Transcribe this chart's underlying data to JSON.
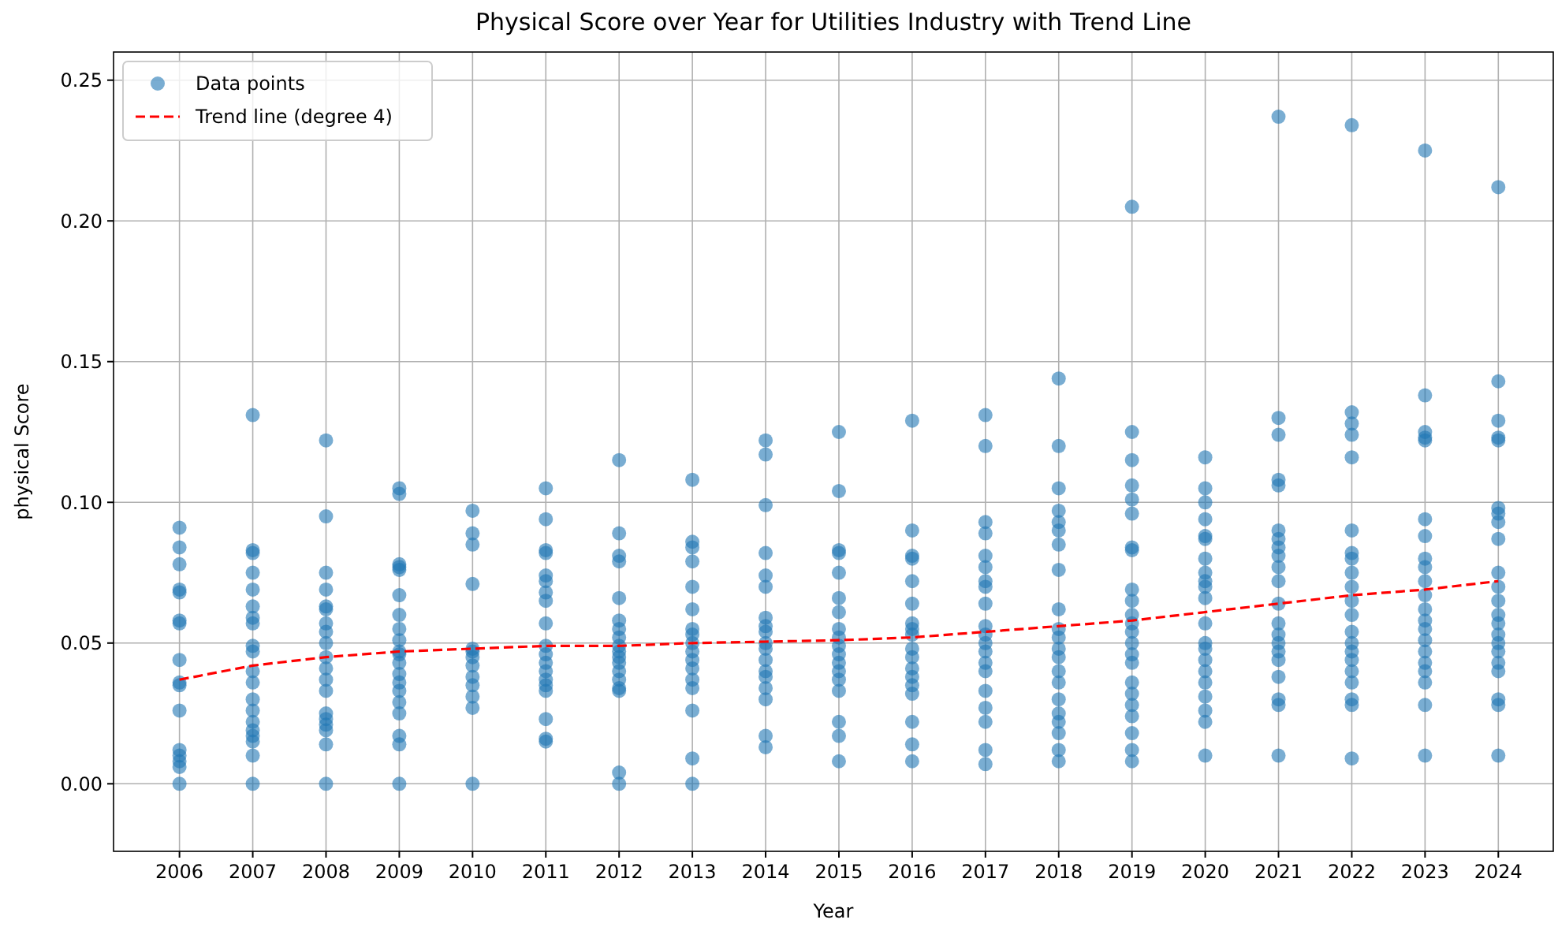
{
  "chart_data": {
    "type": "scatter",
    "title": "Physical Score over Year for Utilities Industry with Trend Line",
    "xlabel": "Year",
    "ylabel": "physical Score",
    "xlim": [
      2005.1,
      2024.75
    ],
    "ylim": [
      -0.024,
      0.26
    ],
    "xticks": [
      2006,
      2007,
      2008,
      2009,
      2010,
      2011,
      2012,
      2013,
      2014,
      2015,
      2016,
      2017,
      2018,
      2019,
      2020,
      2021,
      2022,
      2023,
      2024
    ],
    "yticks": [
      {
        "value": 0,
        "label": "0.00"
      },
      {
        "value": 0.05,
        "label": "0.05"
      },
      {
        "value": 0.1,
        "label": "0.10"
      },
      {
        "value": 0.15,
        "label": "0.15"
      },
      {
        "value": 0.2,
        "label": "0.20"
      },
      {
        "value": 0.25,
        "label": "0.25"
      }
    ],
    "grid": true,
    "legend": "top left",
    "series": [
      {
        "name": "Data points",
        "marker": "circle",
        "color": "#1f77b4",
        "x": [
          2006,
          2006,
          2006,
          2006,
          2006,
          2006,
          2006,
          2006,
          2006,
          2006,
          2006,
          2006,
          2006,
          2006,
          2006,
          2006,
          2007,
          2007,
          2007,
          2007,
          2007,
          2007,
          2007,
          2007,
          2007,
          2007,
          2007,
          2007,
          2007,
          2007,
          2007,
          2007,
          2007,
          2007,
          2007,
          2007,
          2008,
          2008,
          2008,
          2008,
          2008,
          2008,
          2008,
          2008,
          2008,
          2008,
          2008,
          2008,
          2008,
          2008,
          2008,
          2008,
          2008,
          2008,
          2008,
          2009,
          2009,
          2009,
          2009,
          2009,
          2009,
          2009,
          2009,
          2009,
          2009,
          2009,
          2009,
          2009,
          2009,
          2009,
          2009,
          2009,
          2009,
          2009,
          2009,
          2010,
          2010,
          2010,
          2010,
          2010,
          2010,
          2010,
          2010,
          2010,
          2010,
          2010,
          2010,
          2010,
          2011,
          2011,
          2011,
          2011,
          2011,
          2011,
          2011,
          2011,
          2011,
          2011,
          2011,
          2011,
          2011,
          2011,
          2011,
          2011,
          2011,
          2011,
          2011,
          2012,
          2012,
          2012,
          2012,
          2012,
          2012,
          2012,
          2012,
          2012,
          2012,
          2012,
          2012,
          2012,
          2012,
          2012,
          2012,
          2012,
          2012,
          2013,
          2013,
          2013,
          2013,
          2013,
          2013,
          2013,
          2013,
          2013,
          2013,
          2013,
          2013,
          2013,
          2013,
          2013,
          2013,
          2013,
          2014,
          2014,
          2014,
          2014,
          2014,
          2014,
          2014,
          2014,
          2014,
          2014,
          2014,
          2014,
          2014,
          2014,
          2014,
          2014,
          2014,
          2014,
          2015,
          2015,
          2015,
          2015,
          2015,
          2015,
          2015,
          2015,
          2015,
          2015,
          2015,
          2015,
          2015,
          2015,
          2015,
          2015,
          2015,
          2015,
          2016,
          2016,
          2016,
          2016,
          2016,
          2016,
          2016,
          2016,
          2016,
          2016,
          2016,
          2016,
          2016,
          2016,
          2016,
          2016,
          2016,
          2016,
          2017,
          2017,
          2017,
          2017,
          2017,
          2017,
          2017,
          2017,
          2017,
          2017,
          2017,
          2017,
          2017,
          2017,
          2017,
          2017,
          2017,
          2017,
          2017,
          2017,
          2018,
          2018,
          2018,
          2018,
          2018,
          2018,
          2018,
          2018,
          2018,
          2018,
          2018,
          2018,
          2018,
          2018,
          2018,
          2018,
          2018,
          2018,
          2018,
          2018,
          2018,
          2019,
          2019,
          2019,
          2019,
          2019,
          2019,
          2019,
          2019,
          2019,
          2019,
          2019,
          2019,
          2019,
          2019,
          2019,
          2019,
          2019,
          2019,
          2019,
          2019,
          2019,
          2019,
          2019,
          2020,
          2020,
          2020,
          2020,
          2020,
          2020,
          2020,
          2020,
          2020,
          2020,
          2020,
          2020,
          2020,
          2020,
          2020,
          2020,
          2020,
          2020,
          2020,
          2020,
          2020,
          2021,
          2021,
          2021,
          2021,
          2021,
          2021,
          2021,
          2021,
          2021,
          2021,
          2021,
          2021,
          2021,
          2021,
          2021,
          2021,
          2021,
          2021,
          2021,
          2021,
          2021,
          2022,
          2022,
          2022,
          2022,
          2022,
          2022,
          2022,
          2022,
          2022,
          2022,
          2022,
          2022,
          2022,
          2022,
          2022,
          2022,
          2022,
          2022,
          2022,
          2022,
          2022,
          2023,
          2023,
          2023,
          2023,
          2023,
          2023,
          2023,
          2023,
          2023,
          2023,
          2023,
          2023,
          2023,
          2023,
          2023,
          2023,
          2023,
          2023,
          2023,
          2023,
          2023,
          2024,
          2024,
          2024,
          2024,
          2024,
          2024,
          2024,
          2024,
          2024,
          2024,
          2024,
          2024,
          2024,
          2024,
          2024,
          2024,
          2024,
          2024,
          2024,
          2024,
          2024,
          2024
        ],
        "values": [
          0.091,
          0.084,
          0.078,
          0.069,
          0.068,
          0.058,
          0.057,
          0.044,
          0.036,
          0.035,
          0.026,
          0.012,
          0.01,
          0.008,
          0.006,
          0.0,
          0.131,
          0.083,
          0.082,
          0.075,
          0.069,
          0.063,
          0.059,
          0.057,
          0.049,
          0.047,
          0.04,
          0.036,
          0.03,
          0.026,
          0.022,
          0.019,
          0.017,
          0.015,
          0.01,
          0.0,
          0.122,
          0.095,
          0.075,
          0.069,
          0.063,
          0.062,
          0.057,
          0.054,
          0.05,
          0.045,
          0.041,
          0.037,
          0.033,
          0.025,
          0.023,
          0.021,
          0.019,
          0.014,
          0.0,
          0.105,
          0.103,
          0.078,
          0.077,
          0.076,
          0.067,
          0.06,
          0.055,
          0.051,
          0.047,
          0.046,
          0.043,
          0.039,
          0.036,
          0.033,
          0.029,
          0.025,
          0.017,
          0.014,
          0.0,
          0.097,
          0.089,
          0.085,
          0.071,
          0.048,
          0.047,
          0.045,
          0.042,
          0.038,
          0.035,
          0.031,
          0.027,
          0.0,
          0.105,
          0.094,
          0.083,
          0.082,
          0.074,
          0.072,
          0.068,
          0.065,
          0.057,
          0.049,
          0.046,
          0.043,
          0.04,
          0.037,
          0.035,
          0.033,
          0.023,
          0.016,
          0.015,
          0.115,
          0.089,
          0.081,
          0.079,
          0.066,
          0.058,
          0.055,
          0.052,
          0.049,
          0.047,
          0.045,
          0.043,
          0.04,
          0.037,
          0.034,
          0.033,
          0.004,
          0.0,
          0.108,
          0.086,
          0.084,
          0.079,
          0.07,
          0.062,
          0.055,
          0.053,
          0.05,
          0.047,
          0.044,
          0.041,
          0.037,
          0.034,
          0.026,
          0.009,
          0.0,
          0.122,
          0.117,
          0.099,
          0.082,
          0.074,
          0.07,
          0.059,
          0.056,
          0.054,
          0.05,
          0.048,
          0.044,
          0.04,
          0.038,
          0.034,
          0.03,
          0.017,
          0.013,
          0.125,
          0.104,
          0.083,
          0.082,
          0.075,
          0.066,
          0.061,
          0.055,
          0.052,
          0.049,
          0.046,
          0.043,
          0.04,
          0.037,
          0.033,
          0.022,
          0.017,
          0.008,
          0.129,
          0.09,
          0.081,
          0.08,
          0.072,
          0.064,
          0.057,
          0.055,
          0.053,
          0.048,
          0.045,
          0.041,
          0.038,
          0.035,
          0.032,
          0.022,
          0.014,
          0.008,
          0.131,
          0.12,
          0.093,
          0.089,
          0.081,
          0.077,
          0.072,
          0.07,
          0.064,
          0.056,
          0.053,
          0.05,
          0.047,
          0.043,
          0.04,
          0.033,
          0.027,
          0.022,
          0.012,
          0.007,
          0.144,
          0.12,
          0.105,
          0.097,
          0.093,
          0.09,
          0.085,
          0.076,
          0.062,
          0.055,
          0.052,
          0.048,
          0.045,
          0.04,
          0.036,
          0.03,
          0.025,
          0.022,
          0.018,
          0.012,
          0.008,
          0.205,
          0.125,
          0.115,
          0.106,
          0.101,
          0.096,
          0.084,
          0.083,
          0.069,
          0.065,
          0.06,
          0.057,
          0.054,
          0.05,
          0.046,
          0.043,
          0.036,
          0.032,
          0.028,
          0.024,
          0.018,
          0.012,
          0.008,
          0.116,
          0.105,
          0.1,
          0.094,
          0.088,
          0.087,
          0.08,
          0.075,
          0.072,
          0.07,
          0.066,
          0.057,
          0.05,
          0.048,
          0.044,
          0.04,
          0.036,
          0.031,
          0.026,
          0.022,
          0.01,
          0.237,
          0.13,
          0.124,
          0.108,
          0.106,
          0.09,
          0.087,
          0.084,
          0.081,
          0.077,
          0.072,
          0.064,
          0.057,
          0.053,
          0.05,
          0.047,
          0.044,
          0.038,
          0.03,
          0.028,
          0.01,
          0.234,
          0.132,
          0.128,
          0.124,
          0.116,
          0.09,
          0.082,
          0.08,
          0.075,
          0.07,
          0.065,
          0.06,
          0.054,
          0.05,
          0.047,
          0.044,
          0.04,
          0.036,
          0.03,
          0.028,
          0.009,
          0.225,
          0.138,
          0.125,
          0.123,
          0.122,
          0.094,
          0.088,
          0.08,
          0.077,
          0.072,
          0.067,
          0.062,
          0.058,
          0.055,
          0.051,
          0.047,
          0.043,
          0.04,
          0.036,
          0.028,
          0.01,
          0.212,
          0.143,
          0.129,
          0.123,
          0.122,
          0.098,
          0.096,
          0.093,
          0.087,
          0.075,
          0.07,
          0.065,
          0.06,
          0.057,
          0.053,
          0.05,
          0.047,
          0.043,
          0.04,
          0.03,
          0.028,
          0.01
        ]
      },
      {
        "name": "Trend line (degree 4)",
        "type": "line",
        "line_style": "dashed",
        "marker": "none",
        "color": "#ff0000",
        "x": [
          2006,
          2007,
          2008,
          2009,
          2010,
          2011,
          2012,
          2013,
          2014,
          2015,
          2016,
          2017,
          2018,
          2019,
          2020,
          2021,
          2022,
          2023,
          2024
        ],
        "values": [
          0.037,
          0.042,
          0.045,
          0.047,
          0.048,
          0.049,
          0.049,
          0.05,
          0.0505,
          0.051,
          0.052,
          0.054,
          0.056,
          0.058,
          0.061,
          0.064,
          0.067,
          0.069,
          0.072
        ]
      }
    ]
  }
}
